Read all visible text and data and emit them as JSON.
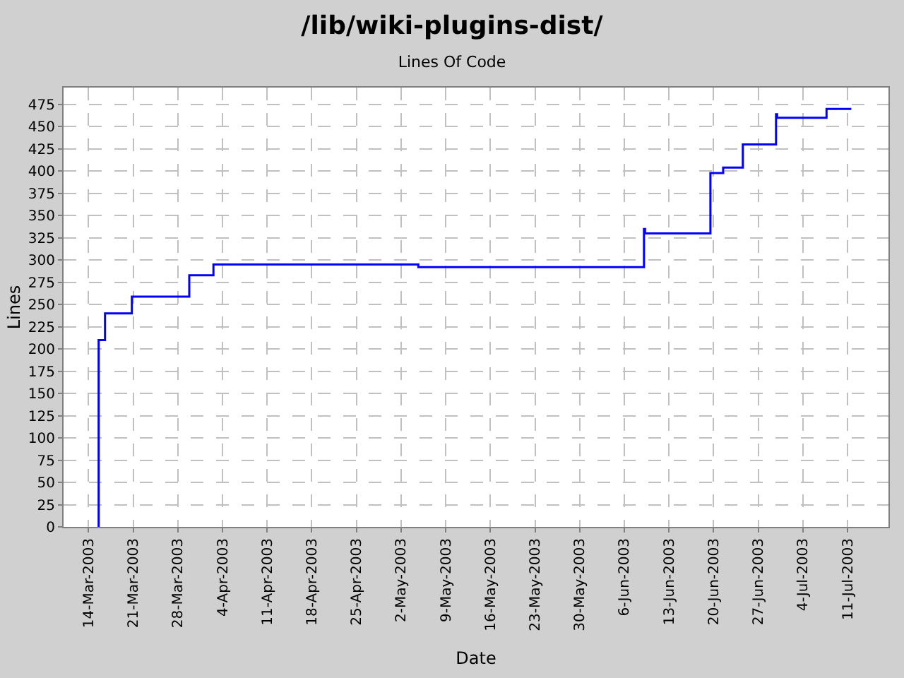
{
  "chart_data": {
    "type": "step",
    "title": "/lib/wiki-plugins-dist/",
    "subtitle": "Lines Of Code",
    "xlabel": "Date",
    "ylabel": "Lines",
    "x": [
      "2003-03-15T14:00",
      "2003-03-15T14:00",
      "2003-03-16T14:00",
      "2003-03-20T19:00",
      "2003-03-29T19:00",
      "2003-04-02T14:00",
      "2003-05-04T17:00",
      "2003-06-09T02:00",
      "2003-06-09T06:00",
      "2003-06-19T12:00",
      "2003-06-21T12:00",
      "2003-06-24T14:00",
      "2003-06-29T19:00",
      "2003-06-29T23:00",
      "2003-07-07T17:00",
      "2003-07-11T14:00"
    ],
    "series": [
      {
        "color": "#0000ff",
        "values": [
          0,
          210,
          240,
          259,
          283,
          295,
          292,
          335,
          330,
          398,
          404,
          430,
          464,
          460,
          470,
          470
        ]
      }
    ],
    "xlim": [
      "2003-03-10T02:00",
      "2003-07-17T10:00"
    ],
    "xticks": [
      {
        "value": "2003-03-14",
        "label": "14-Mar-2003"
      },
      {
        "value": "2003-03-21",
        "label": "21-Mar-2003"
      },
      {
        "value": "2003-03-28",
        "label": "28-Mar-2003"
      },
      {
        "value": "2003-04-04",
        "label": "4-Apr-2003"
      },
      {
        "value": "2003-04-11",
        "label": "11-Apr-2003"
      },
      {
        "value": "2003-04-18",
        "label": "18-Apr-2003"
      },
      {
        "value": "2003-04-25",
        "label": "25-Apr-2003"
      },
      {
        "value": "2003-05-02",
        "label": "2-May-2003"
      },
      {
        "value": "2003-05-09",
        "label": "9-May-2003"
      },
      {
        "value": "2003-05-16",
        "label": "16-May-2003"
      },
      {
        "value": "2003-05-23",
        "label": "23-May-2003"
      },
      {
        "value": "2003-05-30",
        "label": "30-May-2003"
      },
      {
        "value": "2003-06-06",
        "label": "6-Jun-2003"
      },
      {
        "value": "2003-06-13",
        "label": "13-Jun-2003"
      },
      {
        "value": "2003-06-20",
        "label": "20-Jun-2003"
      },
      {
        "value": "2003-06-27",
        "label": "27-Jun-2003"
      },
      {
        "value": "2003-07-04",
        "label": "4-Jul-2003"
      },
      {
        "value": "2003-07-11",
        "label": "11-Jul-2003"
      }
    ],
    "ylim": [
      0,
      494
    ],
    "yticks": [
      0,
      25,
      50,
      75,
      100,
      125,
      150,
      175,
      200,
      225,
      250,
      275,
      300,
      325,
      350,
      375,
      400,
      425,
      450,
      475
    ],
    "grid": true,
    "legend": false,
    "marker": "none",
    "line_style": "solid"
  }
}
